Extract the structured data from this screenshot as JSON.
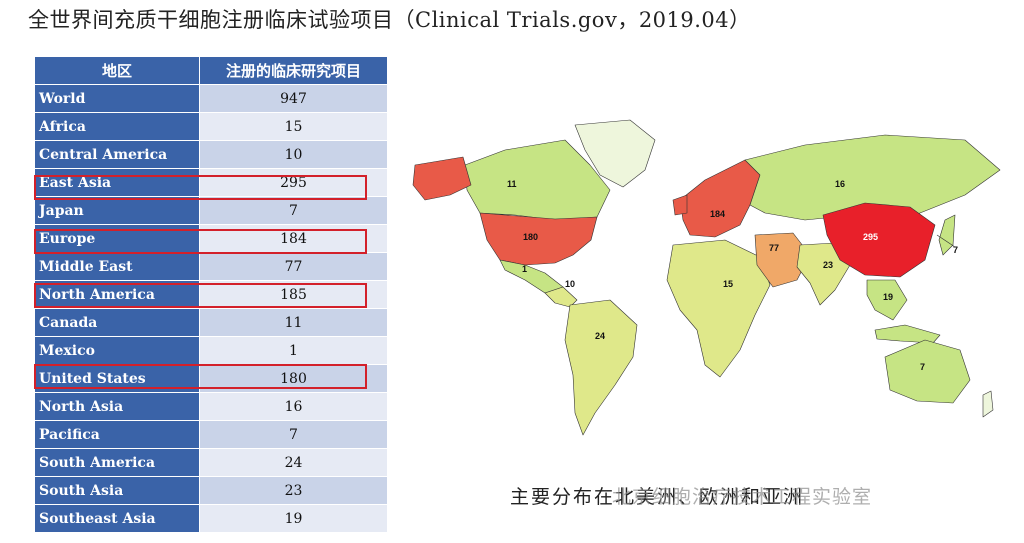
{
  "title": "全世界间充质干细胞注册临床试验项目（Clinical Trials.gov，2019.04）",
  "table": {
    "headers": [
      "地区",
      "注册的临床研究项目"
    ],
    "rows": [
      {
        "region": "World",
        "count": "947"
      },
      {
        "region": "Africa",
        "count": "15"
      },
      {
        "region": "Central America",
        "count": "10"
      },
      {
        "region": "East Asia",
        "count": "295"
      },
      {
        "region": "Japan",
        "count": "7"
      },
      {
        "region": "Europe",
        "count": "184"
      },
      {
        "region": "Middle East",
        "count": "77"
      },
      {
        "region": "North America",
        "count": "185"
      },
      {
        "region": "Canada",
        "count": "11"
      },
      {
        "region": "Mexico",
        "count": "1"
      },
      {
        "region": "United States",
        "count": "180"
      },
      {
        "region": "North Asia",
        "count": "16"
      },
      {
        "region": "Pacifica",
        "count": "7"
      },
      {
        "region": "South America",
        "count": "24"
      },
      {
        "region": "South Asia",
        "count": "23"
      },
      {
        "region": "Southeast Asia",
        "count": "19"
      }
    ],
    "highlighted_regions": [
      "East Asia",
      "Europe",
      "North America",
      "United States"
    ],
    "highlight_color": "#d3202a",
    "header_color": "#3a63a8"
  },
  "chart_data": {
    "type": "table",
    "categories": [
      "World",
      "Africa",
      "Central America",
      "East Asia",
      "Japan",
      "Europe",
      "Middle East",
      "North America",
      "Canada",
      "Mexico",
      "United States",
      "North Asia",
      "Pacifica",
      "South America",
      "South Asia",
      "Southeast Asia"
    ],
    "values": [
      947,
      15,
      10,
      295,
      7,
      184,
      77,
      185,
      11,
      1,
      180,
      16,
      7,
      24,
      23,
      19
    ],
    "map_labels": [
      "11",
      "180",
      "1",
      "10",
      "24",
      "15",
      "184",
      "77",
      "16",
      "23",
      "295",
      "7",
      "19",
      "7"
    ],
    "color_scale": {
      "high": "#e8202a",
      "mid": "#e8604a",
      "medium": "#f0a868",
      "low": "#dfe88a",
      "lowest": "#c6e484",
      "no_data": "#eef6dc"
    }
  },
  "caption": "主要分布在北美洲、欧洲和亚洲",
  "watermark": "北京细胞治疗技术工程实验室"
}
